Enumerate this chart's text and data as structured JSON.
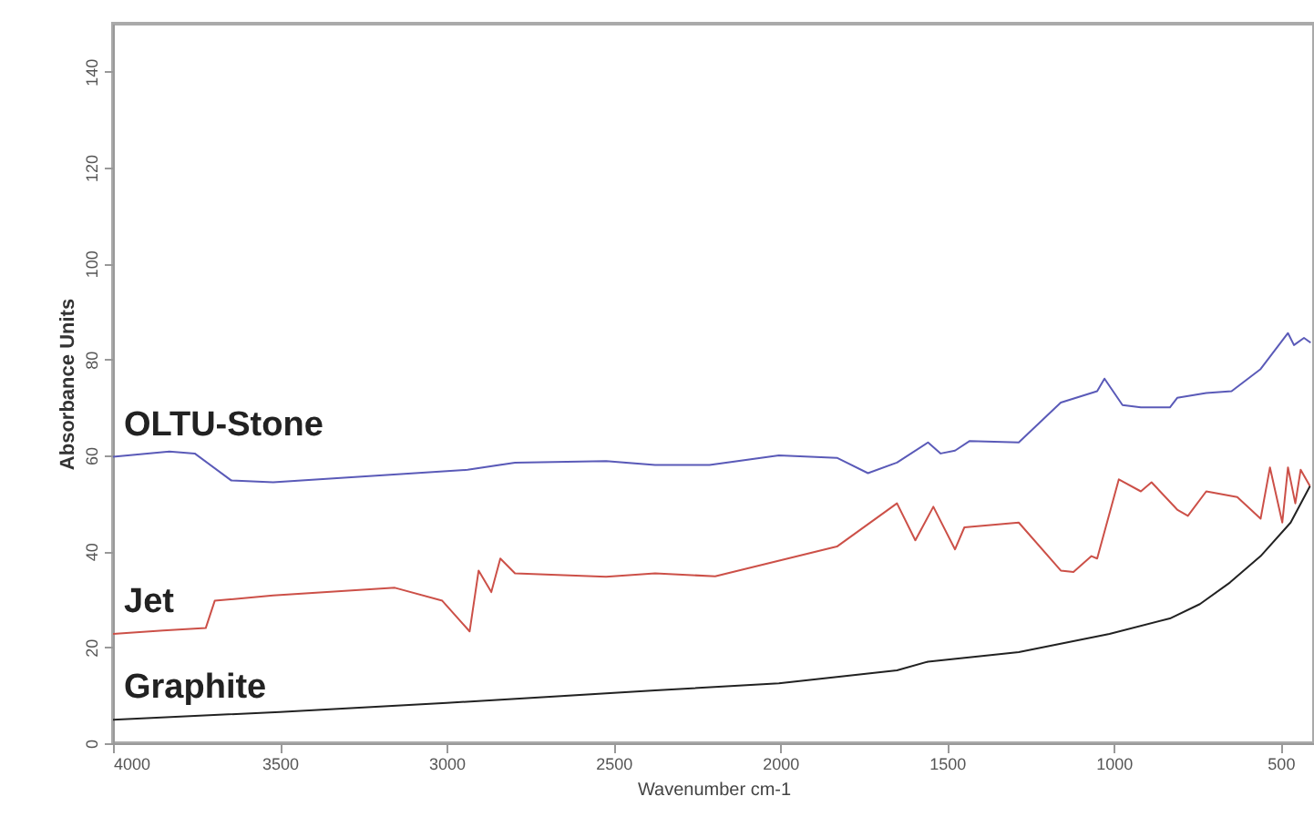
{
  "chart_data": {
    "type": "line",
    "xlabel": "Wavenumber cm-1",
    "ylabel": "Absorbance Units",
    "xlim": [
      4000,
      400
    ],
    "ylim": [
      0,
      150
    ],
    "xticks": [
      4000,
      3500,
      3000,
      2500,
      2000,
      1500,
      1000,
      500
    ],
    "yticks": [
      0,
      20,
      40,
      60,
      80,
      100,
      120,
      140
    ],
    "grid": false,
    "legend": false,
    "marker": "none",
    "line_style": "solid",
    "series": [
      {
        "name": "OLTU-Stone",
        "color": "#5a5ab8",
        "x": [
          4000,
          3831,
          3755,
          3646,
          3520,
          2937,
          2795,
          2522,
          2375,
          2212,
          2004,
          1830,
          1737,
          1650,
          1557,
          1519,
          1476,
          1432,
          1285,
          1159,
          1050,
          1028,
          974,
          919,
          832,
          810,
          723,
          647,
          560,
          478,
          460,
          430,
          410
        ],
        "values": [
          59.7,
          60.8,
          60.4,
          54.8,
          54.4,
          57,
          58.5,
          58.8,
          58,
          58,
          60,
          59.5,
          56.3,
          58.5,
          62.7,
          60.4,
          61,
          63,
          62.7,
          71,
          73.4,
          76,
          70.5,
          70,
          70,
          72,
          73,
          73.4,
          78,
          85.5,
          83,
          84.5,
          83.5
        ]
      },
      {
        "name": "Jet",
        "color": "#cc5048",
        "x": [
          4000,
          3850,
          3722,
          3695,
          3520,
          3155,
          3013,
          2931,
          2904,
          2866,
          2839,
          2795,
          2522,
          2375,
          2195,
          1830,
          1650,
          1595,
          1541,
          1476,
          1448,
          1285,
          1159,
          1121,
          1067,
          1050,
          985,
          919,
          887,
          810,
          778,
          723,
          630,
          560,
          532,
          495,
          478,
          456,
          440,
          412
        ],
        "values": [
          22.8,
          23.5,
          24,
          29.7,
          30.8,
          32.4,
          29.7,
          23.3,
          36,
          31.5,
          38.5,
          35.4,
          34.7,
          35.4,
          34.8,
          41,
          50,
          42.3,
          49.3,
          40.4,
          45,
          46,
          36,
          35.7,
          39,
          38.5,
          55,
          52.5,
          54.4,
          48.7,
          47.4,
          52.5,
          51.3,
          46.8,
          57.5,
          46,
          57.5,
          50,
          57,
          53.6
        ]
      },
      {
        "name": "Graphite",
        "color": "#222222",
        "x": [
          4000,
          3500,
          3000,
          2375,
          2004,
          1650,
          1557,
          1285,
          1013,
          832,
          742,
          652,
          560,
          470,
          412
        ],
        "values": [
          4.9,
          6.5,
          8.4,
          11,
          12.5,
          15.2,
          17,
          19,
          22.8,
          26,
          29,
          33.5,
          39,
          46,
          53.6
        ]
      }
    ]
  }
}
